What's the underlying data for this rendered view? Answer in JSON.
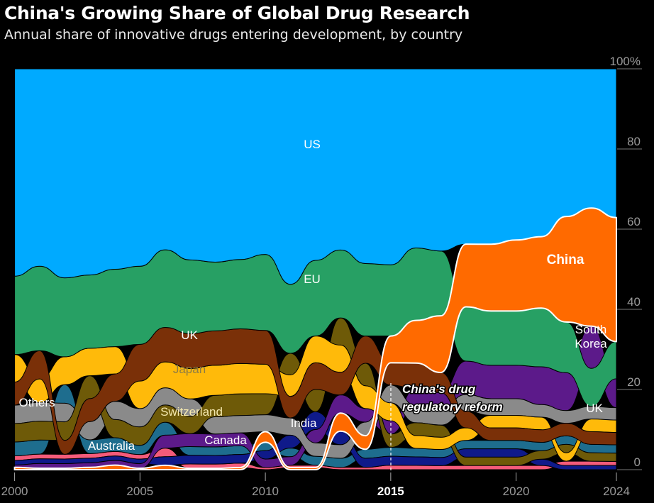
{
  "title": "China's Growing Share of Global Drug Research",
  "subtitle": "Annual share of innovative drugs entering development, by country",
  "chart_data": {
    "type": "area",
    "stacking": "ranked (largest on top each year)",
    "title": "China's Growing Share of Global Drug Research",
    "xlabel": "",
    "ylabel": "",
    "ylim": [
      0,
      100
    ],
    "x": [
      2000,
      2001,
      2002,
      2003,
      2004,
      2005,
      2006,
      2007,
      2008,
      2009,
      2010,
      2011,
      2012,
      2013,
      2014,
      2015,
      2016,
      2017,
      2018,
      2019,
      2020,
      2021,
      2022,
      2023,
      2024
    ],
    "x_ticks": [
      "2000",
      "2005",
      "2010",
      "2015",
      "2020",
      "2024"
    ],
    "y_ticks": [
      "0",
      "20",
      "40",
      "60",
      "80",
      "100%"
    ],
    "annotation": {
      "x": 2015,
      "line1": "China's drug",
      "line2": "regulatory reform"
    },
    "series": [
      {
        "name": "US",
        "color": "#00aaff",
        "values": [
          45,
          42,
          45,
          45,
          44,
          43,
          42,
          44,
          45,
          44,
          44,
          50,
          43,
          40,
          43,
          44,
          42,
          45,
          42,
          42,
          41,
          40,
          35,
          33,
          36
        ]
      },
      {
        "name": "EU",
        "color": "#27a064",
        "values": [
          17,
          18,
          17,
          16,
          17,
          17,
          18,
          17,
          16,
          16,
          18,
          16,
          17,
          15,
          16,
          16,
          17,
          16,
          13,
          13,
          13,
          14,
          12,
          9,
          9
        ]
      },
      {
        "name": "China",
        "color": "#ff6a00",
        "values": [
          0.5,
          0.3,
          0.3,
          0.5,
          1,
          0.3,
          1,
          0.3,
          0.3,
          0.5,
          2.5,
          0.5,
          0.5,
          4,
          3,
          6,
          10,
          14,
          15,
          16,
          17,
          17,
          25,
          28,
          30
        ]
      },
      {
        "name": "UK",
        "color": "#7a3008",
        "values": [
          5,
          6,
          3,
          5,
          6,
          8,
          8,
          8,
          8,
          8,
          8,
          5,
          6,
          5,
          6,
          5,
          6,
          5,
          4,
          3,
          3,
          3,
          3,
          3,
          3
        ]
      },
      {
        "name": "Japan",
        "color": "#ffba0a",
        "values": [
          6,
          5,
          6,
          6,
          6,
          6,
          6,
          7,
          7,
          7,
          7,
          5,
          6,
          6,
          5,
          4,
          3,
          3,
          3,
          3,
          3,
          3,
          2,
          3,
          3
        ]
      },
      {
        "name": "Switzerland",
        "color": "#6e5a08",
        "values": [
          4,
          4,
          4,
          5,
          4,
          4,
          4,
          4,
          5,
          5,
          5,
          5,
          5,
          6,
          5,
          3,
          3,
          3,
          2,
          2,
          2,
          2,
          2,
          2,
          2
        ]
      },
      {
        "name": "Others",
        "color": "#8a8a8a",
        "values": [
          4,
          4,
          4,
          4,
          4,
          4,
          4,
          4,
          4,
          4,
          4,
          4,
          3,
          3,
          3,
          4,
          4,
          4,
          4,
          4,
          4,
          3,
          3,
          3,
          3
        ]
      },
      {
        "name": "South Korea",
        "color": "#5c1a8a",
        "values": [
          0.5,
          1,
          1,
          1,
          1,
          1,
          3,
          3,
          3,
          3,
          2,
          2,
          3,
          4,
          3,
          3,
          4,
          4,
          8,
          8,
          8,
          9,
          9,
          10,
          7
        ]
      },
      {
        "name": "India",
        "color": "#0f1a8a",
        "values": [
          1,
          1,
          1,
          1,
          1,
          1,
          2,
          2,
          2,
          2,
          2,
          3,
          4,
          3,
          2,
          2,
          2,
          2,
          2,
          2,
          2,
          1.5,
          1,
          1,
          1
        ]
      },
      {
        "name": "Canada",
        "color": "#1e6d8e",
        "values": [
          3,
          3,
          4,
          3,
          3,
          2,
          3,
          2,
          2,
          2,
          2,
          2,
          2,
          2,
          2,
          2,
          2,
          2,
          2,
          2,
          2,
          2,
          2,
          2,
          2
        ]
      },
      {
        "name": "Australia",
        "color": "#f45b7a",
        "values": [
          1,
          1,
          1,
          1,
          1,
          1,
          2,
          1,
          1,
          1,
          0.5,
          0.5,
          0.5,
          0.5,
          0.5,
          1,
          1,
          1,
          1,
          1,
          1,
          1,
          1,
          1,
          1
        ]
      }
    ],
    "labels": {
      "south_korea_line1": "South",
      "south_korea_line2": "Korea"
    }
  }
}
